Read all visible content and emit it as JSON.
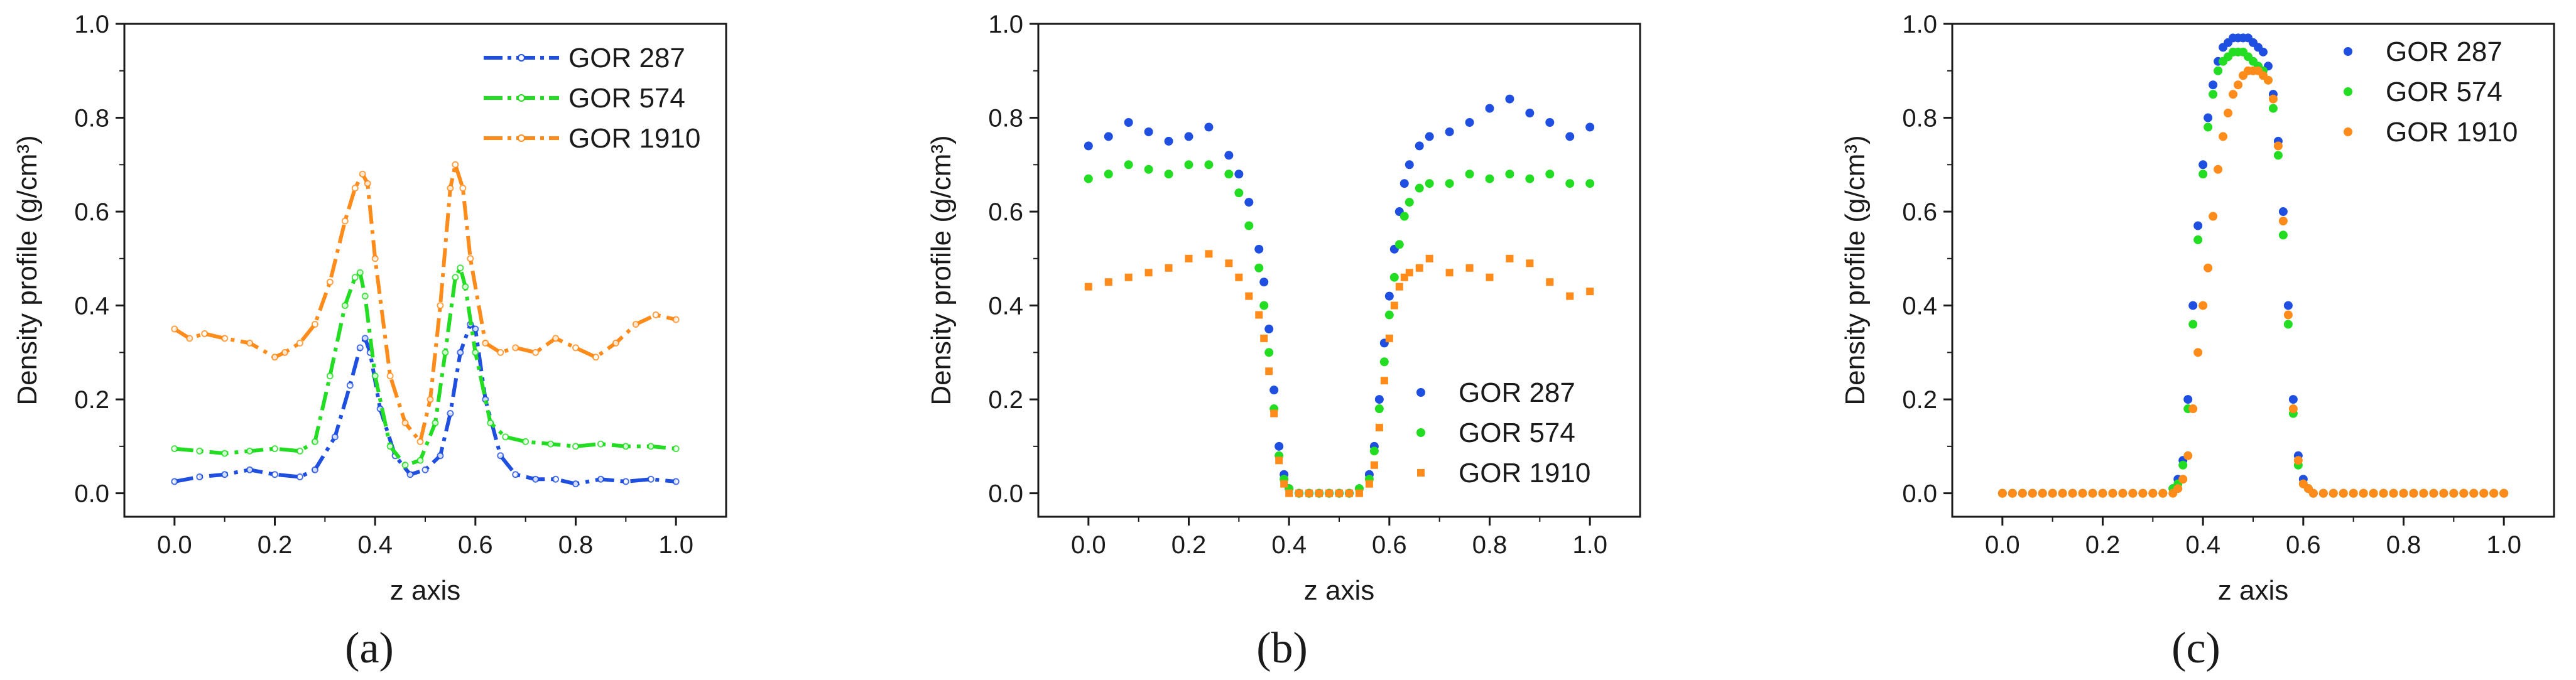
{
  "chart_data": [
    {
      "type": "line",
      "panel": "a",
      "panel_label": "(a)",
      "title": "",
      "xlabel": "z axis",
      "ylabel": "Density profile (g/cm³)",
      "xlim": [
        -0.1,
        1.1
      ],
      "ylim": [
        -0.05,
        1.0
      ],
      "xticks": [
        0.0,
        0.2,
        0.4,
        0.6,
        0.8,
        1.0
      ],
      "yticks": [
        0.0,
        0.2,
        0.4,
        0.6,
        0.8,
        1.0
      ],
      "legend_position": "top-right",
      "series": [
        {
          "name": "GOR 287",
          "color": "#1f4fe0",
          "x": [
            0.0,
            0.05,
            0.1,
            0.15,
            0.2,
            0.25,
            0.28,
            0.32,
            0.35,
            0.37,
            0.38,
            0.39,
            0.41,
            0.44,
            0.47,
            0.5,
            0.53,
            0.55,
            0.57,
            0.59,
            0.6,
            0.62,
            0.65,
            0.68,
            0.72,
            0.76,
            0.8,
            0.85,
            0.9,
            0.95,
            1.0
          ],
          "y": [
            0.025,
            0.035,
            0.04,
            0.05,
            0.04,
            0.035,
            0.05,
            0.12,
            0.23,
            0.31,
            0.33,
            0.3,
            0.18,
            0.08,
            0.04,
            0.05,
            0.08,
            0.17,
            0.3,
            0.36,
            0.35,
            0.2,
            0.08,
            0.04,
            0.03,
            0.03,
            0.02,
            0.03,
            0.025,
            0.03,
            0.025
          ]
        },
        {
          "name": "GOR 574",
          "color": "#22dd22",
          "x": [
            0.0,
            0.05,
            0.1,
            0.15,
            0.2,
            0.25,
            0.28,
            0.31,
            0.34,
            0.36,
            0.37,
            0.38,
            0.4,
            0.43,
            0.46,
            0.49,
            0.52,
            0.54,
            0.56,
            0.57,
            0.58,
            0.6,
            0.63,
            0.66,
            0.7,
            0.75,
            0.8,
            0.85,
            0.9,
            0.95,
            1.0
          ],
          "y": [
            0.095,
            0.09,
            0.085,
            0.09,
            0.095,
            0.09,
            0.11,
            0.25,
            0.4,
            0.46,
            0.47,
            0.42,
            0.25,
            0.1,
            0.06,
            0.07,
            0.15,
            0.3,
            0.46,
            0.48,
            0.44,
            0.3,
            0.15,
            0.12,
            0.11,
            0.105,
            0.1,
            0.105,
            0.1,
            0.1,
            0.095
          ]
        },
        {
          "name": "GOR 1910",
          "color": "#ff8c1a",
          "x": [
            0.0,
            0.03,
            0.06,
            0.1,
            0.15,
            0.2,
            0.22,
            0.25,
            0.28,
            0.31,
            0.34,
            0.36,
            0.375,
            0.385,
            0.4,
            0.43,
            0.46,
            0.49,
            0.51,
            0.53,
            0.55,
            0.56,
            0.575,
            0.59,
            0.62,
            0.65,
            0.68,
            0.72,
            0.76,
            0.8,
            0.84,
            0.88,
            0.92,
            0.96,
            1.0
          ],
          "y": [
            0.35,
            0.33,
            0.34,
            0.33,
            0.32,
            0.29,
            0.3,
            0.32,
            0.36,
            0.45,
            0.58,
            0.65,
            0.68,
            0.66,
            0.5,
            0.25,
            0.15,
            0.11,
            0.2,
            0.4,
            0.65,
            0.7,
            0.65,
            0.5,
            0.32,
            0.3,
            0.31,
            0.3,
            0.33,
            0.31,
            0.29,
            0.32,
            0.36,
            0.38,
            0.37
          ]
        }
      ]
    },
    {
      "type": "scatter",
      "panel": "b",
      "panel_label": "(b)",
      "title": "",
      "xlabel": "z axis",
      "ylabel": "Density profile (g/cm³)",
      "xlim": [
        -0.1,
        1.1
      ],
      "ylim": [
        -0.05,
        1.0
      ],
      "xticks": [
        0.0,
        0.2,
        0.4,
        0.6,
        0.8,
        1.0
      ],
      "yticks": [
        0.0,
        0.2,
        0.4,
        0.6,
        0.8,
        1.0
      ],
      "legend_position": "bottom-right",
      "series": [
        {
          "name": "GOR 287",
          "color": "#1f4fe0",
          "x": [
            0.0,
            0.04,
            0.08,
            0.12,
            0.16,
            0.2,
            0.24,
            0.28,
            0.3,
            0.32,
            0.34,
            0.35,
            0.36,
            0.37,
            0.38,
            0.39,
            0.4,
            0.42,
            0.44,
            0.46,
            0.48,
            0.5,
            0.52,
            0.54,
            0.56,
            0.57,
            0.58,
            0.59,
            0.6,
            0.61,
            0.62,
            0.63,
            0.64,
            0.66,
            0.68,
            0.72,
            0.76,
            0.8,
            0.84,
            0.88,
            0.92,
            0.96,
            1.0
          ],
          "y": [
            0.74,
            0.76,
            0.79,
            0.77,
            0.75,
            0.76,
            0.78,
            0.72,
            0.68,
            0.62,
            0.52,
            0.45,
            0.35,
            0.22,
            0.1,
            0.04,
            0.01,
            0.0,
            0.0,
            0.0,
            0.0,
            0.0,
            0.0,
            0.01,
            0.04,
            0.1,
            0.2,
            0.32,
            0.42,
            0.52,
            0.6,
            0.66,
            0.7,
            0.74,
            0.76,
            0.77,
            0.79,
            0.82,
            0.84,
            0.81,
            0.79,
            0.76,
            0.78
          ]
        },
        {
          "name": "GOR 574",
          "color": "#22dd22",
          "x": [
            0.0,
            0.04,
            0.08,
            0.12,
            0.16,
            0.2,
            0.24,
            0.28,
            0.3,
            0.32,
            0.34,
            0.35,
            0.36,
            0.37,
            0.38,
            0.39,
            0.4,
            0.42,
            0.44,
            0.46,
            0.48,
            0.5,
            0.52,
            0.54,
            0.56,
            0.57,
            0.58,
            0.59,
            0.6,
            0.61,
            0.62,
            0.63,
            0.64,
            0.66,
            0.68,
            0.72,
            0.76,
            0.8,
            0.84,
            0.88,
            0.92,
            0.96,
            1.0
          ],
          "y": [
            0.67,
            0.68,
            0.7,
            0.69,
            0.68,
            0.7,
            0.7,
            0.68,
            0.64,
            0.57,
            0.48,
            0.4,
            0.3,
            0.18,
            0.08,
            0.03,
            0.01,
            0.0,
            0.0,
            0.0,
            0.0,
            0.0,
            0.0,
            0.01,
            0.03,
            0.09,
            0.18,
            0.28,
            0.38,
            0.46,
            0.53,
            0.59,
            0.62,
            0.65,
            0.66,
            0.66,
            0.68,
            0.67,
            0.68,
            0.67,
            0.68,
            0.66,
            0.66
          ]
        },
        {
          "name": "GOR 1910",
          "color": "#ff8c1a",
          "x": [
            0.0,
            0.04,
            0.08,
            0.12,
            0.16,
            0.2,
            0.24,
            0.28,
            0.3,
            0.32,
            0.34,
            0.35,
            0.36,
            0.37,
            0.38,
            0.39,
            0.4,
            0.42,
            0.44,
            0.46,
            0.48,
            0.5,
            0.52,
            0.54,
            0.56,
            0.57,
            0.58,
            0.59,
            0.6,
            0.61,
            0.62,
            0.63,
            0.64,
            0.66,
            0.68,
            0.72,
            0.76,
            0.8,
            0.84,
            0.88,
            0.92,
            0.96,
            1.0
          ],
          "y": [
            0.44,
            0.45,
            0.46,
            0.47,
            0.48,
            0.5,
            0.51,
            0.49,
            0.46,
            0.42,
            0.38,
            0.33,
            0.26,
            0.17,
            0.07,
            0.02,
            0.0,
            0.0,
            0.0,
            0.0,
            0.0,
            0.0,
            0.0,
            0.0,
            0.02,
            0.06,
            0.14,
            0.24,
            0.33,
            0.4,
            0.44,
            0.46,
            0.47,
            0.48,
            0.5,
            0.47,
            0.48,
            0.46,
            0.5,
            0.49,
            0.45,
            0.42,
            0.43
          ]
        }
      ]
    },
    {
      "type": "scatter",
      "panel": "c",
      "panel_label": "(c)",
      "title": "",
      "xlabel": "z axis",
      "ylabel": "Density profile (g/cm³)",
      "xlim": [
        -0.1,
        1.1
      ],
      "ylim": [
        -0.05,
        1.0
      ],
      "xticks": [
        0.0,
        0.2,
        0.4,
        0.6,
        0.8,
        1.0
      ],
      "yticks": [
        0.0,
        0.2,
        0.4,
        0.6,
        0.8,
        1.0
      ],
      "legend_position": "top-right",
      "series": [
        {
          "name": "GOR 287",
          "color": "#1f4fe0",
          "x": [
            0.0,
            0.02,
            0.04,
            0.06,
            0.08,
            0.1,
            0.12,
            0.14,
            0.16,
            0.18,
            0.2,
            0.22,
            0.24,
            0.26,
            0.28,
            0.3,
            0.32,
            0.34,
            0.35,
            0.36,
            0.37,
            0.38,
            0.39,
            0.4,
            0.41,
            0.42,
            0.43,
            0.44,
            0.45,
            0.46,
            0.47,
            0.48,
            0.49,
            0.5,
            0.51,
            0.52,
            0.53,
            0.54,
            0.55,
            0.56,
            0.57,
            0.58,
            0.59,
            0.6,
            0.61,
            0.62,
            0.64,
            0.66,
            0.68,
            0.7,
            0.72,
            0.74,
            0.76,
            0.78,
            0.8,
            0.82,
            0.84,
            0.86,
            0.88,
            0.9,
            0.92,
            0.94,
            0.96,
            0.98,
            1.0
          ],
          "y": [
            0.0,
            0.0,
            0.0,
            0.0,
            0.0,
            0.0,
            0.0,
            0.0,
            0.0,
            0.0,
            0.0,
            0.0,
            0.0,
            0.0,
            0.0,
            0.0,
            0.0,
            0.01,
            0.03,
            0.07,
            0.2,
            0.4,
            0.57,
            0.7,
            0.8,
            0.87,
            0.92,
            0.95,
            0.96,
            0.97,
            0.97,
            0.97,
            0.97,
            0.96,
            0.95,
            0.94,
            0.91,
            0.85,
            0.75,
            0.6,
            0.4,
            0.2,
            0.08,
            0.03,
            0.01,
            0.0,
            0.0,
            0.0,
            0.0,
            0.0,
            0.0,
            0.0,
            0.0,
            0.0,
            0.0,
            0.0,
            0.0,
            0.0,
            0.0,
            0.0,
            0.0,
            0.0,
            0.0,
            0.0,
            0.0
          ]
        },
        {
          "name": "GOR 574",
          "color": "#22dd22",
          "x": [
            0.0,
            0.02,
            0.04,
            0.06,
            0.08,
            0.1,
            0.12,
            0.14,
            0.16,
            0.18,
            0.2,
            0.22,
            0.24,
            0.26,
            0.28,
            0.3,
            0.32,
            0.34,
            0.35,
            0.36,
            0.37,
            0.38,
            0.39,
            0.4,
            0.41,
            0.42,
            0.43,
            0.44,
            0.45,
            0.46,
            0.47,
            0.48,
            0.49,
            0.5,
            0.51,
            0.52,
            0.53,
            0.54,
            0.55,
            0.56,
            0.57,
            0.58,
            0.59,
            0.6,
            0.61,
            0.62,
            0.64,
            0.66,
            0.68,
            0.7,
            0.72,
            0.74,
            0.76,
            0.78,
            0.8,
            0.82,
            0.84,
            0.86,
            0.88,
            0.9,
            0.92,
            0.94,
            0.96,
            0.98,
            1.0
          ],
          "y": [
            0.0,
            0.0,
            0.0,
            0.0,
            0.0,
            0.0,
            0.0,
            0.0,
            0.0,
            0.0,
            0.0,
            0.0,
            0.0,
            0.0,
            0.0,
            0.0,
            0.0,
            0.01,
            0.02,
            0.06,
            0.18,
            0.36,
            0.54,
            0.68,
            0.78,
            0.85,
            0.9,
            0.92,
            0.93,
            0.94,
            0.94,
            0.94,
            0.93,
            0.92,
            0.91,
            0.9,
            0.88,
            0.82,
            0.72,
            0.55,
            0.36,
            0.17,
            0.06,
            0.02,
            0.01,
            0.0,
            0.0,
            0.0,
            0.0,
            0.0,
            0.0,
            0.0,
            0.0,
            0.0,
            0.0,
            0.0,
            0.0,
            0.0,
            0.0,
            0.0,
            0.0,
            0.0,
            0.0,
            0.0,
            0.0
          ]
        },
        {
          "name": "GOR 1910",
          "color": "#ff8c1a",
          "x": [
            0.0,
            0.02,
            0.04,
            0.06,
            0.08,
            0.1,
            0.12,
            0.14,
            0.16,
            0.18,
            0.2,
            0.22,
            0.24,
            0.26,
            0.28,
            0.3,
            0.32,
            0.34,
            0.35,
            0.36,
            0.37,
            0.38,
            0.39,
            0.4,
            0.41,
            0.42,
            0.43,
            0.44,
            0.45,
            0.46,
            0.47,
            0.48,
            0.49,
            0.5,
            0.51,
            0.52,
            0.53,
            0.54,
            0.55,
            0.56,
            0.57,
            0.58,
            0.59,
            0.6,
            0.61,
            0.62,
            0.64,
            0.66,
            0.68,
            0.7,
            0.72,
            0.74,
            0.76,
            0.78,
            0.8,
            0.82,
            0.84,
            0.86,
            0.88,
            0.9,
            0.92,
            0.94,
            0.96,
            0.98,
            1.0
          ],
          "y": [
            0.0,
            0.0,
            0.0,
            0.0,
            0.0,
            0.0,
            0.0,
            0.0,
            0.0,
            0.0,
            0.0,
            0.0,
            0.0,
            0.0,
            0.0,
            0.0,
            0.0,
            0.0,
            0.01,
            0.03,
            0.08,
            0.18,
            0.3,
            0.4,
            0.48,
            0.59,
            0.69,
            0.76,
            0.81,
            0.85,
            0.87,
            0.89,
            0.9,
            0.9,
            0.9,
            0.89,
            0.88,
            0.84,
            0.74,
            0.58,
            0.38,
            0.18,
            0.07,
            0.02,
            0.01,
            0.0,
            0.0,
            0.0,
            0.0,
            0.0,
            0.0,
            0.0,
            0.0,
            0.0,
            0.0,
            0.0,
            0.0,
            0.0,
            0.0,
            0.0,
            0.0,
            0.0,
            0.0,
            0.0,
            0.0
          ]
        }
      ]
    }
  ]
}
